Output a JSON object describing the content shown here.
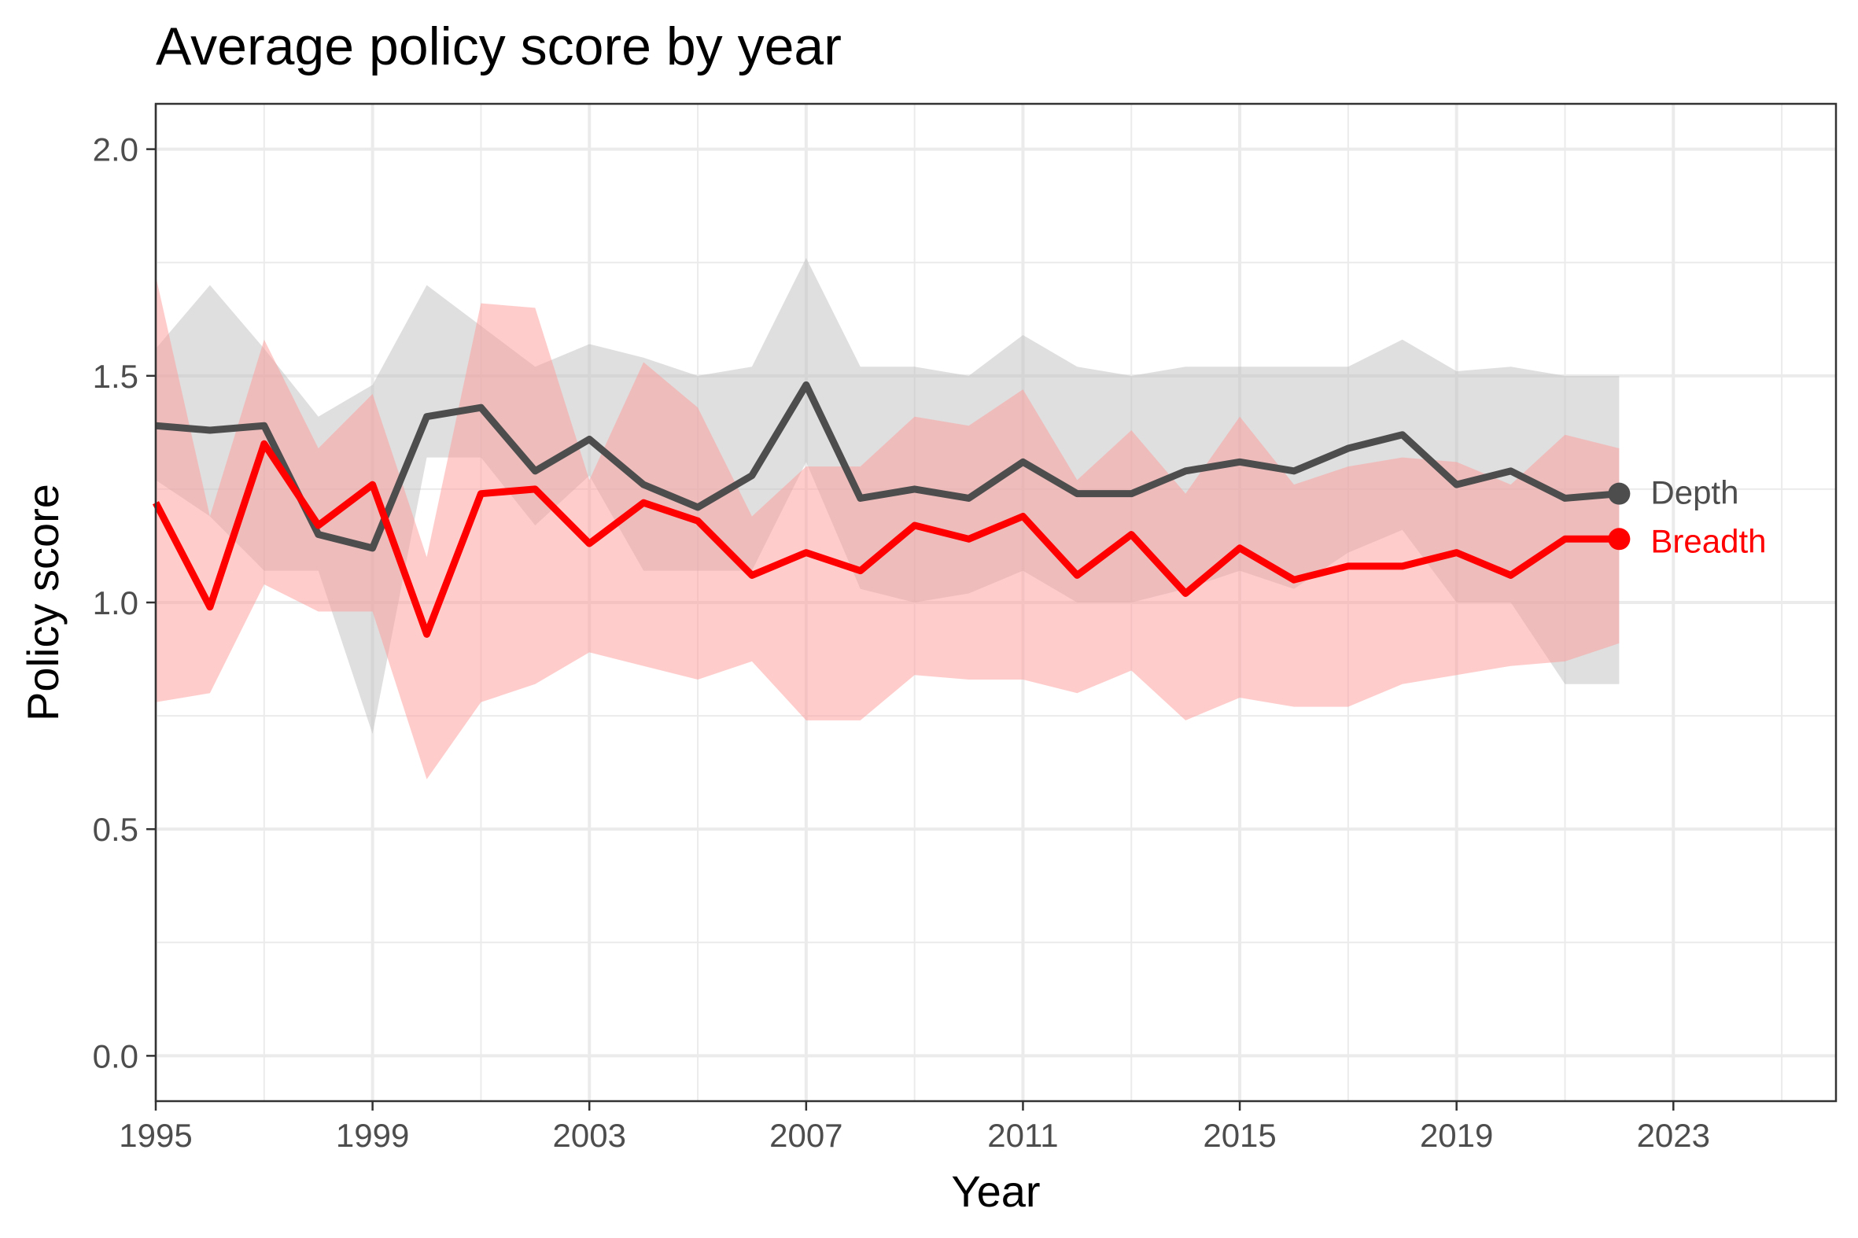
{
  "chart_data": {
    "type": "line",
    "title": "Average policy score by year",
    "xlabel": "Year",
    "ylabel": "Policy score",
    "xlim": [
      1995,
      2026
    ],
    "ylim": [
      -0.1,
      2.1
    ],
    "x_ticks": [
      1995,
      1999,
      2003,
      2007,
      2011,
      2015,
      2019,
      2023
    ],
    "y_ticks": [
      0.0,
      0.5,
      1.0,
      1.5,
      2.0
    ],
    "y_tick_labels": [
      "0.0",
      "0.5",
      "1.0",
      "1.5",
      "2.0"
    ],
    "grid": true,
    "legend": "direct labels at line ends (right)",
    "x": [
      1995,
      1996,
      1997,
      1998,
      1999,
      2000,
      2001,
      2002,
      2003,
      2004,
      2005,
      2006,
      2007,
      2008,
      2009,
      2010,
      2011,
      2012,
      2013,
      2014,
      2015,
      2016,
      2017,
      2018,
      2019,
      2020,
      2021,
      2022
    ],
    "series": [
      {
        "name": "Depth",
        "color": "#4d4d4d",
        "band_color": "#bfbfbf",
        "values": [
          1.39,
          1.38,
          1.39,
          1.15,
          1.12,
          1.41,
          1.43,
          1.29,
          1.36,
          1.26,
          1.21,
          1.28,
          1.48,
          1.23,
          1.25,
          1.23,
          1.31,
          1.24,
          1.24,
          1.29,
          1.31,
          1.29,
          1.34,
          1.37,
          1.26,
          1.29,
          1.23,
          1.24
        ],
        "lower": [
          1.27,
          1.19,
          1.07,
          1.07,
          0.71,
          1.32,
          1.32,
          1.17,
          1.28,
          1.07,
          1.07,
          1.07,
          1.31,
          1.03,
          1.0,
          1.02,
          1.07,
          1.0,
          1.0,
          1.03,
          1.07,
          1.03,
          1.11,
          1.16,
          1.0,
          1.0,
          0.82,
          0.82
        ],
        "upper": [
          1.56,
          1.7,
          1.56,
          1.41,
          1.48,
          1.7,
          1.61,
          1.52,
          1.57,
          1.54,
          1.5,
          1.52,
          1.76,
          1.52,
          1.52,
          1.5,
          1.59,
          1.52,
          1.5,
          1.52,
          1.52,
          1.52,
          1.52,
          1.58,
          1.51,
          1.52,
          1.5,
          1.5
        ]
      },
      {
        "name": "Breadth",
        "color": "#ff0000",
        "band_color": "#ff9999",
        "values": [
          1.22,
          0.99,
          1.35,
          1.17,
          1.26,
          0.93,
          1.24,
          1.25,
          1.13,
          1.22,
          1.18,
          1.06,
          1.11,
          1.07,
          1.17,
          1.14,
          1.19,
          1.06,
          1.15,
          1.02,
          1.12,
          1.05,
          1.08,
          1.08,
          1.11,
          1.06,
          1.14,
          1.14
        ],
        "lower": [
          0.78,
          0.8,
          1.04,
          0.98,
          0.98,
          0.61,
          0.78,
          0.82,
          0.89,
          0.86,
          0.83,
          0.87,
          0.74,
          0.74,
          0.84,
          0.83,
          0.83,
          0.8,
          0.85,
          0.74,
          0.79,
          0.77,
          0.77,
          0.82,
          0.84,
          0.86,
          0.87,
          0.91
        ],
        "upper": [
          1.72,
          1.19,
          1.58,
          1.34,
          1.46,
          1.1,
          1.66,
          1.65,
          1.27,
          1.53,
          1.43,
          1.19,
          1.3,
          1.3,
          1.41,
          1.39,
          1.47,
          1.27,
          1.38,
          1.24,
          1.41,
          1.26,
          1.3,
          1.32,
          1.31,
          1.26,
          1.37,
          1.34
        ]
      }
    ]
  }
}
